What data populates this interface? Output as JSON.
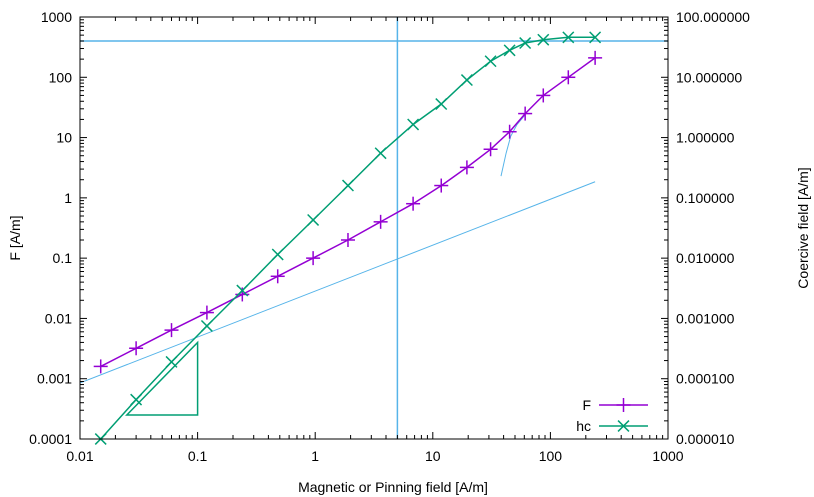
{
  "chart_data": {
    "type": "line",
    "title": "",
    "xlabel": "Magnetic or Pinning field [A/m]",
    "ylabel": "F [A/m]",
    "y2label": "Coercive field [A/m]",
    "x_scale": "log",
    "y_scale": "log",
    "y2_scale": "log",
    "xlim": [
      0.01,
      1000
    ],
    "ylim": [
      0.0001,
      1000
    ],
    "y2lim": [
      1e-05,
      100
    ],
    "grid": false,
    "legend_position": "bottom-right",
    "x_ticks": [
      "0.01",
      "0.1",
      "1",
      "10",
      "100",
      "1000"
    ],
    "y_ticks": [
      "0.0001",
      "0.001",
      "0.01",
      "0.1",
      "1",
      "10",
      "100",
      "1000"
    ],
    "y2_ticks": [
      "0.000010",
      "0.000100",
      "0.001000",
      "0.010000",
      "0.100000",
      "1.000000",
      "10.000000",
      "100.000000"
    ],
    "series": [
      {
        "name": "F",
        "axis": "y",
        "color": "#9400d3",
        "marker": "plus",
        "x": [
          0.015,
          0.03,
          0.06,
          0.12,
          0.24,
          0.48,
          0.96,
          1.9,
          3.6,
          6.8,
          11.8,
          19.5,
          31,
          45,
          61,
          87,
          142,
          240
        ],
        "y": [
          0.0016,
          0.0032,
          0.0064,
          0.0125,
          0.025,
          0.05,
          0.1,
          0.2,
          0.4,
          0.8,
          1.6,
          3.2,
          6.4,
          12.5,
          25,
          50,
          100,
          210
        ]
      },
      {
        "name": "hc",
        "axis": "y2",
        "color": "#009e73",
        "marker": "x",
        "x": [
          0.015,
          0.03,
          0.06,
          0.12,
          0.24,
          0.48,
          0.96,
          1.9,
          3.6,
          6.8,
          11.8,
          19.5,
          31,
          45,
          61,
          87,
          142,
          240
        ],
        "y": [
          1e-05,
          4.5e-05,
          0.00019,
          0.00075,
          0.0029,
          0.0115,
          0.043,
          0.16,
          0.55,
          1.65,
          3.6,
          9.0,
          18.5,
          28,
          37,
          42,
          46,
          46
        ]
      }
    ],
    "reference_lines": {
      "color": "#56b4e9",
      "vertical_x": 5,
      "horizontal_y": 400,
      "fit_line": {
        "x": [
          0.01,
          240
        ],
        "y": [
          0.00085,
          1.85
        ]
      },
      "steep_curve": {
        "x": [
          38,
          42,
          46,
          52,
          60
        ],
        "y": [
          2.3,
          5.5,
          10.5,
          16.5,
          23
        ]
      }
    },
    "slope_triangle": {
      "color": "#009e73",
      "x": [
        0.025,
        0.1
      ],
      "y": [
        0.00025,
        0.004
      ]
    }
  }
}
